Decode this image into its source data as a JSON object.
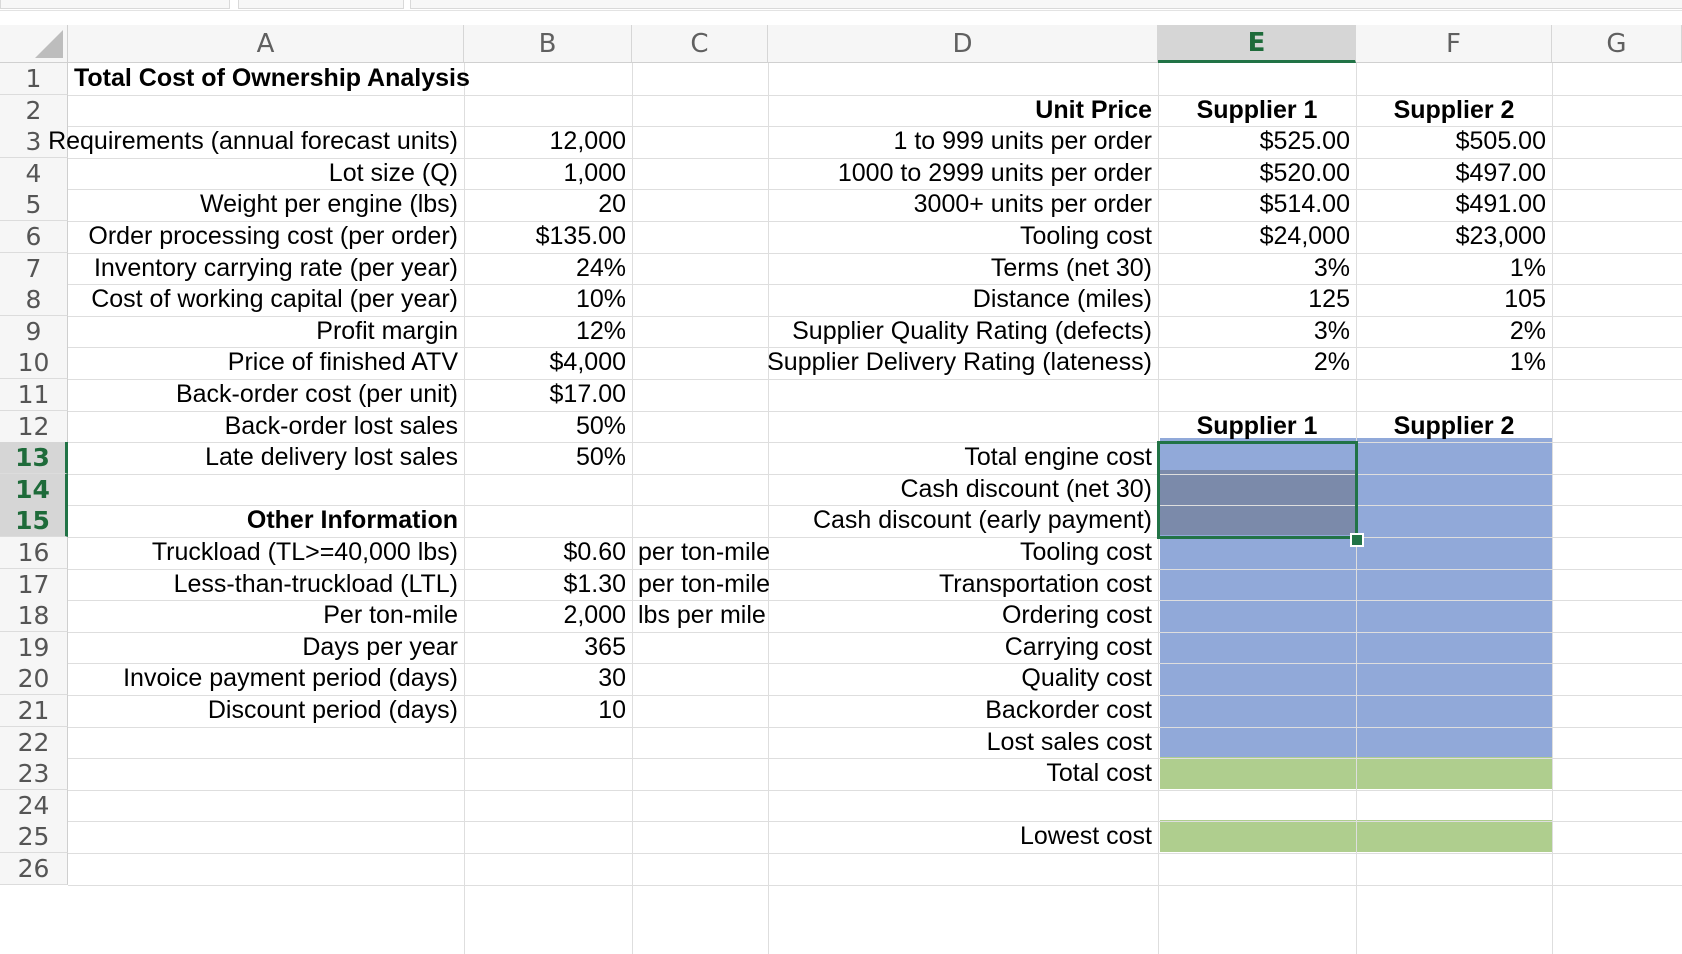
{
  "columns": [
    "A",
    "B",
    "C",
    "D",
    "E",
    "F",
    "G"
  ],
  "rows": [
    "1",
    "2",
    "3",
    "4",
    "5",
    "6",
    "7",
    "8",
    "9",
    "10",
    "11",
    "12",
    "13",
    "14",
    "15",
    "16",
    "17",
    "18",
    "19",
    "20",
    "21",
    "22",
    "23",
    "24",
    "25",
    "26"
  ],
  "title": "Total Cost of Ownership Analysis",
  "left_labels": [
    "Requirements (annual forecast units)",
    "Lot size (Q)",
    "Weight per engine (lbs)",
    "Order processing cost (per order)",
    "Inventory carrying rate (per year)",
    "Cost of working capital (per year)",
    "Profit margin",
    "Price of finished ATV",
    "Back-order cost (per unit)",
    "Back-order lost sales",
    "Late delivery lost sales"
  ],
  "left_values": [
    "12,000",
    "1,000",
    "20",
    "$135.00",
    "24%",
    "10%",
    "12%",
    "$4,000",
    "$17.00",
    "50%",
    "50%"
  ],
  "other_header": "Other Information",
  "other_labels": [
    "Truckload (TL>=40,000 lbs)",
    "Less-than-truckload (LTL)",
    "Per ton-mile",
    "Days per year",
    "Invoice payment period (days)",
    "Discount period (days)"
  ],
  "other_values": [
    "$0.60",
    "$1.30",
    "2,000",
    "365",
    "30",
    "10"
  ],
  "other_units": [
    "per ton-mile",
    "per ton-mile",
    "lbs per mile"
  ],
  "price_header": "Unit Price",
  "supplier1": "Supplier 1",
  "supplier2": "Supplier 2",
  "price_labels": [
    "1 to 999 units per order",
    "1000 to 2999 units per order",
    "3000+ units per order",
    "Tooling cost",
    "Terms (net 30)",
    "Distance (miles)",
    "Supplier Quality Rating (defects)",
    "Supplier Delivery Rating (lateness)"
  ],
  "s1_values": [
    "$525.00",
    "$520.00",
    "$514.00",
    "$24,000",
    "3%",
    "125",
    "3%",
    "2%"
  ],
  "s2_values": [
    "$505.00",
    "$497.00",
    "$491.00",
    "$23,000",
    "1%",
    "105",
    "2%",
    "1%"
  ],
  "cost_labels": [
    "Total engine cost",
    "Cash discount (net 30)",
    "Cash discount (early payment)",
    "Tooling cost",
    "Transportation cost",
    "Ordering cost",
    "Carrying cost",
    "Quality cost",
    "Backorder cost",
    "Lost sales cost",
    "Total cost"
  ],
  "lowest_cost": "Lowest cost",
  "colors": {
    "blue_fill": "#91a9d9",
    "green_fill": "#afce8e",
    "selection": "#217346"
  }
}
